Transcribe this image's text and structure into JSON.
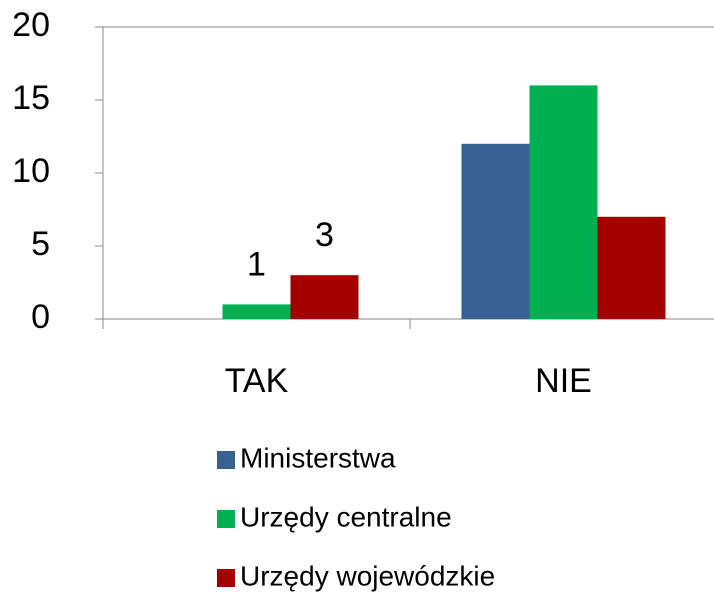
{
  "chart_data": {
    "type": "bar",
    "categories": [
      "TAK",
      "NIE"
    ],
    "series": [
      {
        "name": "Ministerstwa",
        "color": "#386092",
        "values": [
          0,
          12
        ]
      },
      {
        "name": "Urzędy centralne",
        "color": "#00b050",
        "values": [
          1,
          16
        ],
        "value_labels": [
          "1",
          null
        ]
      },
      {
        "name": "Urzędy wojewódzkie",
        "color": "#a50000",
        "values": [
          3,
          7
        ],
        "value_labels": [
          "3",
          null
        ]
      }
    ],
    "ylim": [
      0,
      20
    ],
    "yticks": [
      0,
      5,
      10,
      15,
      20
    ],
    "grid": false,
    "legend": "bottom"
  }
}
